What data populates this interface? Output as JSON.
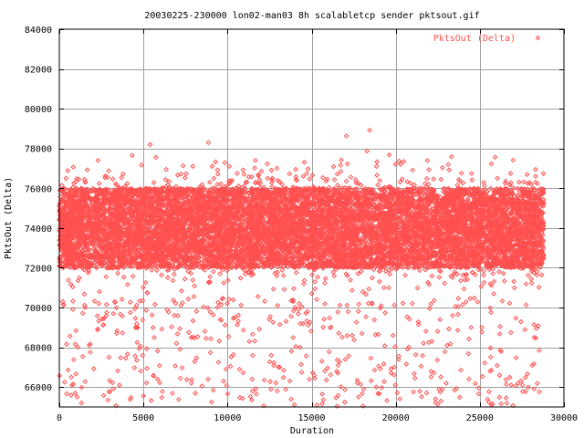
{
  "chart_data": {
    "type": "scatter",
    "title": "20030225-230000 lon02-man03 8h scalabletcp sender pktsout.gif",
    "xlabel": "Duration",
    "ylabel": "PktsOut (Delta)",
    "xlim": [
      0,
      30000
    ],
    "ylim": [
      65000,
      84000
    ],
    "x_ticks": [
      0,
      5000,
      10000,
      15000,
      20000,
      25000,
      30000
    ],
    "y_ticks": [
      66000,
      68000,
      70000,
      72000,
      74000,
      76000,
      78000,
      80000,
      82000,
      84000
    ],
    "grid": true,
    "legend_position": "top-right",
    "marker": "diamond",
    "series": [
      {
        "name": "PktsOut (Delta)",
        "color": "#ff5050",
        "x_range": [
          0,
          28800
        ],
        "dense_band": [
          72000,
          76000
        ],
        "center": 74000,
        "notable_points": [
          {
            "x": 5400,
            "y": 78200
          },
          {
            "x": 2300,
            "y": 77400
          },
          {
            "x": 10100,
            "y": 77100
          },
          {
            "x": 200,
            "y": 70300
          }
        ]
      }
    ]
  }
}
